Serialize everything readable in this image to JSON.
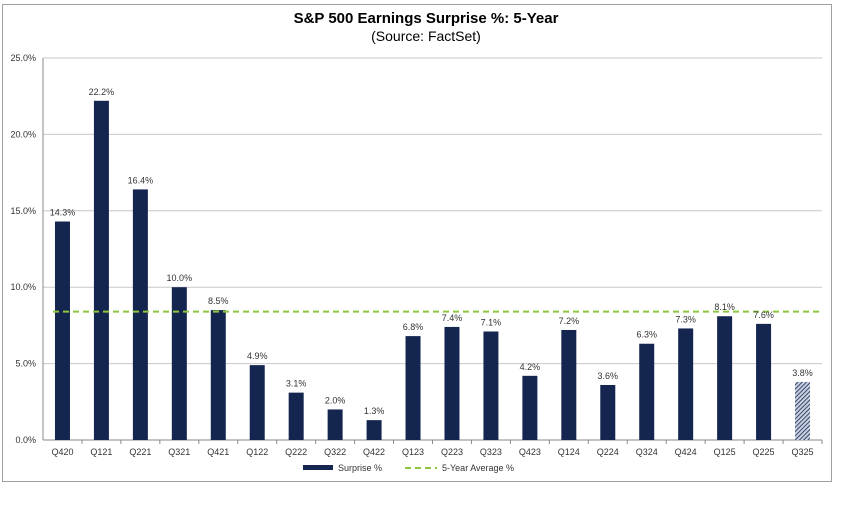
{
  "chart_data": {
    "type": "bar",
    "title": "S&P 500 Earnings Surprise %: 5-Year",
    "subtitle": "(Source: FactSet)",
    "xlabel": "",
    "ylabel": "",
    "ylim": [
      0,
      25
    ],
    "yticks": [
      "0.0%",
      "5.0%",
      "10.0%",
      "15.0%",
      "20.0%",
      "25.0%"
    ],
    "grid": true,
    "categories": [
      "Q420",
      "Q121",
      "Q221",
      "Q321",
      "Q421",
      "Q122",
      "Q222",
      "Q322",
      "Q422",
      "Q123",
      "Q223",
      "Q323",
      "Q423",
      "Q124",
      "Q224",
      "Q324",
      "Q424",
      "Q125",
      "Q225",
      "Q325"
    ],
    "series": [
      {
        "name": "Surprise %",
        "values": [
          14.3,
          22.2,
          16.4,
          10.0,
          8.5,
          4.9,
          3.1,
          2.0,
          1.3,
          6.8,
          7.4,
          7.1,
          4.2,
          7.2,
          3.6,
          6.3,
          7.3,
          8.1,
          7.6,
          3.8
        ],
        "labels": [
          "14.3%",
          "22.2%",
          "16.4%",
          "10.0%",
          "8.5%",
          "4.9%",
          "3.1%",
          "2.0%",
          "1.3%",
          "6.8%",
          "7.4%",
          "7.1%",
          "4.2%",
          "7.2%",
          "3.6%",
          "6.3%",
          "7.3%",
          "8.1%",
          "7.6%",
          "3.8%"
        ],
        "color": "#14264f",
        "hatched_last": true
      },
      {
        "name": "5-Year Average %",
        "value": 8.4,
        "color": "#8dc63f",
        "style": "dashed"
      }
    ],
    "legend": "bottom"
  }
}
